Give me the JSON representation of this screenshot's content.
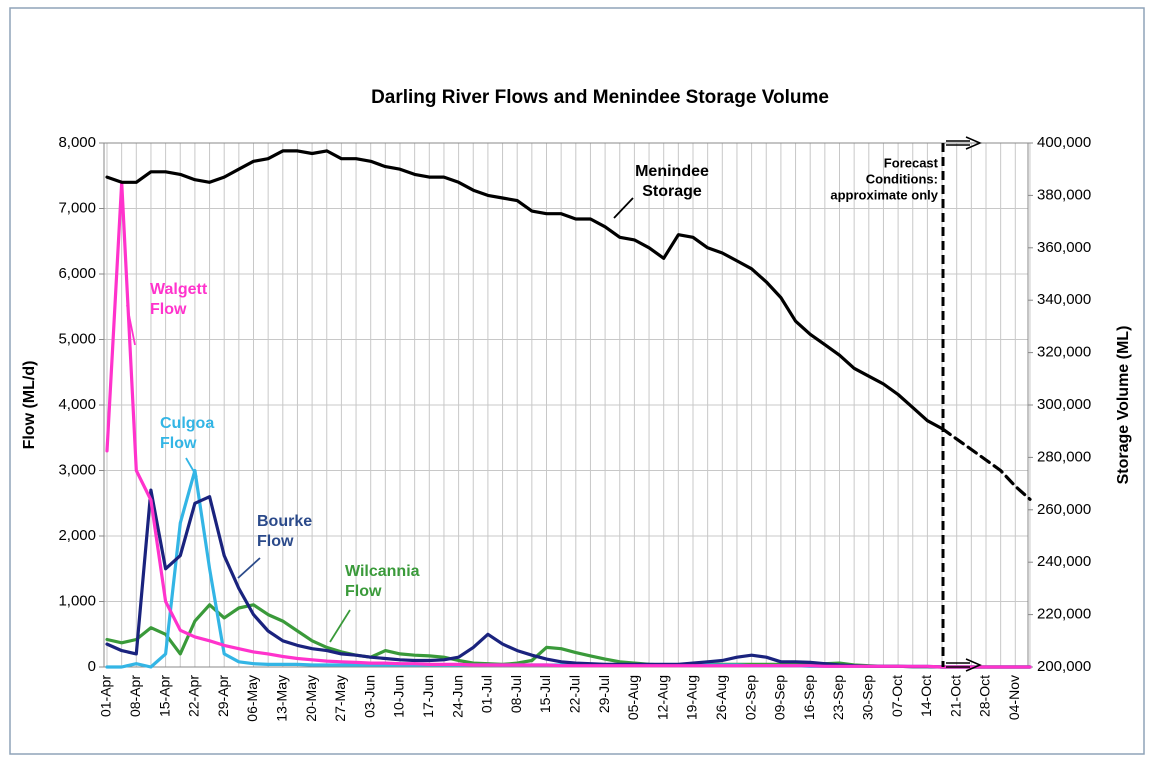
{
  "chart_data": {
    "type": "line",
    "title": "Darling River Flows and Menindee Storage Volume",
    "y_label": "Flow (ML/d)",
    "y2_label": "Storage Volume (ML)",
    "categories": [
      "01-Apr",
      null,
      "08-Apr",
      null,
      "15-Apr",
      null,
      "22-Apr",
      null,
      "29-Apr",
      null,
      "06-May",
      null,
      "13-May",
      null,
      "20-May",
      null,
      "27-May",
      null,
      "03-Jun",
      null,
      "10-Jun",
      null,
      "17-Jun",
      null,
      "24-Jun",
      null,
      "01-Jul",
      null,
      "08-Jul",
      null,
      "15-Jul",
      null,
      "22-Jul",
      null,
      "29-Jul",
      null,
      "05-Aug",
      null,
      "12-Aug",
      null,
      "19-Aug",
      null,
      "26-Aug",
      null,
      "02-Sep",
      null,
      "09-Sep",
      null,
      "16-Sep",
      null,
      "23-Sep",
      null,
      "30-Sep",
      null,
      "07-Oct",
      null,
      "14-Oct",
      null,
      "21-Oct",
      null,
      "28-Oct",
      null,
      "04-Nov",
      null
    ],
    "ylim": [
      0,
      8000
    ],
    "yticks": [
      0,
      {
        "value": 1000,
        "label": "1,000"
      },
      {
        "value": 2000,
        "label": "2,000"
      },
      {
        "value": 3000,
        "label": "3,000"
      },
      {
        "value": 4000,
        "label": "4,000"
      },
      {
        "value": 5000,
        "label": "5,000"
      },
      {
        "value": 6000,
        "label": "6,000"
      },
      {
        "value": 7000,
        "label": "7,000"
      },
      {
        "value": 8000,
        "label": "8,000"
      }
    ],
    "y2lim": [
      200000,
      400000
    ],
    "y2ticks": [
      {
        "value": 200000,
        "label": "200,000"
      },
      {
        "value": 220000,
        "label": "220,000"
      },
      {
        "value": 240000,
        "label": "240,000"
      },
      {
        "value": 260000,
        "label": "260,000"
      },
      {
        "value": 280000,
        "label": "280,000"
      },
      {
        "value": 300000,
        "label": "300,000"
      },
      {
        "value": 320000,
        "label": "320,000"
      },
      {
        "value": 340000,
        "label": "340,000"
      },
      {
        "value": 360000,
        "label": "360,000"
      },
      {
        "value": 380000,
        "label": "380,000"
      },
      {
        "value": 400000,
        "label": "400,000"
      }
    ],
    "grid": true,
    "series": [
      {
        "name": "Wilcannia Flow",
        "color": "#3a9a3a",
        "values": [
          420,
          370,
          420,
          600,
          500,
          200,
          700,
          950,
          750,
          900,
          950,
          800,
          700,
          550,
          400,
          300,
          230,
          180,
          150,
          250,
          200,
          180,
          170,
          150,
          100,
          60,
          50,
          40,
          60,
          100,
          300,
          280,
          220,
          170,
          120,
          80,
          60,
          40,
          30,
          30,
          40,
          40,
          40,
          40,
          40,
          40,
          40,
          40,
          40,
          50,
          60,
          30,
          20,
          10,
          10,
          5,
          5,
          0,
          0,
          0,
          0,
          0,
          0,
          0
        ]
      },
      {
        "name": "Culgoa Flow",
        "color": "#33b5e5",
        "values": [
          0,
          0,
          50,
          0,
          200,
          2200,
          3000,
          1500,
          200,
          80,
          50,
          40,
          40,
          40,
          30,
          30,
          30,
          30,
          30,
          30,
          30,
          30,
          30,
          30,
          30,
          30,
          30,
          30,
          30,
          30,
          30,
          30,
          30,
          30,
          30,
          30,
          30,
          30,
          30,
          30,
          30,
          30,
          30,
          30,
          20,
          20,
          20,
          20,
          10,
          10,
          10,
          10,
          10,
          10,
          10,
          10,
          10,
          0,
          0,
          0,
          0,
          0,
          0,
          0
        ]
      },
      {
        "name": "Bourke Flow",
        "color": "#1a237e",
        "values": [
          350,
          250,
          200,
          2700,
          1500,
          1700,
          2500,
          2600,
          1700,
          1200,
          800,
          550,
          400,
          330,
          280,
          250,
          200,
          180,
          150,
          130,
          110,
          100,
          100,
          110,
          150,
          300,
          500,
          350,
          250,
          180,
          120,
          80,
          60,
          50,
          40,
          40,
          40,
          40,
          40,
          40,
          60,
          80,
          100,
          150,
          180,
          150,
          80,
          80,
          70,
          50,
          30,
          20,
          10,
          10,
          10,
          5,
          5,
          0,
          0,
          0,
          0,
          0,
          0,
          0
        ]
      },
      {
        "name": "Walgett Flow",
        "color": "#ff33cc",
        "values": [
          3300,
          7400,
          3000,
          2550,
          1000,
          560,
          460,
          400,
          330,
          280,
          230,
          200,
          160,
          130,
          110,
          90,
          80,
          70,
          60,
          60,
          50,
          50,
          40,
          40,
          40,
          30,
          30,
          30,
          30,
          30,
          30,
          20,
          20,
          20,
          20,
          20,
          20,
          20,
          20,
          20,
          20,
          20,
          20,
          20,
          20,
          20,
          20,
          20,
          20,
          10,
          10,
          10,
          10,
          10,
          10,
          10,
          10,
          0,
          0,
          0,
          0,
          0,
          0,
          0
        ]
      },
      {
        "name": "Menindee Storage",
        "color": "#000000",
        "axis": "y2",
        "values": [
          387000,
          385000,
          385000,
          389000,
          389000,
          388000,
          386000,
          385000,
          387000,
          390000,
          393000,
          394000,
          397000,
          397000,
          396000,
          397000,
          394000,
          394000,
          393000,
          391000,
          390000,
          388000,
          387000,
          387000,
          385000,
          382000,
          380000,
          379000,
          378000,
          374000,
          373000,
          373000,
          371000,
          371000,
          368000,
          364000,
          363000,
          360000,
          356000,
          365000,
          364000,
          360000,
          358000,
          355000,
          352000,
          347000,
          341000,
          332000,
          327000,
          323000,
          319000,
          314000,
          311000,
          308000,
          304000,
          299000,
          294000,
          291000,
          null,
          null,
          null,
          null,
          null,
          null
        ]
      },
      {
        "color": "#000000",
        "axis": "y2",
        "dashed": true,
        "values": [
          null,
          null,
          null,
          null,
          null,
          null,
          null,
          null,
          null,
          null,
          null,
          null,
          null,
          null,
          null,
          null,
          null,
          null,
          null,
          null,
          null,
          null,
          null,
          null,
          null,
          null,
          null,
          null,
          null,
          null,
          null,
          null,
          null,
          null,
          null,
          null,
          null,
          null,
          null,
          null,
          null,
          null,
          null,
          null,
          null,
          null,
          null,
          null,
          null,
          null,
          null,
          null,
          null,
          null,
          null,
          null,
          null,
          291000,
          287000,
          283000,
          279000,
          275000,
          269000,
          264000
        ]
      }
    ],
    "annotations": [
      {
        "lines": [
          "Walgett",
          "Flow"
        ],
        "color": "#ff33cc"
      },
      {
        "lines": [
          "Culgoa",
          "Flow"
        ],
        "color": "#33b5e5"
      },
      {
        "lines": [
          "Bourke",
          "Flow"
        ],
        "color": "#2b4a8a"
      },
      {
        "lines": [
          "Wilcannia",
          "Flow"
        ],
        "color": "#3a9a3a"
      },
      {
        "lines": [
          "Menindee",
          "Storage"
        ],
        "color": "#000000"
      },
      {
        "lines": [
          "Forecast",
          "Conditions:",
          "approximate only"
        ],
        "color": "#000000"
      }
    ]
  }
}
